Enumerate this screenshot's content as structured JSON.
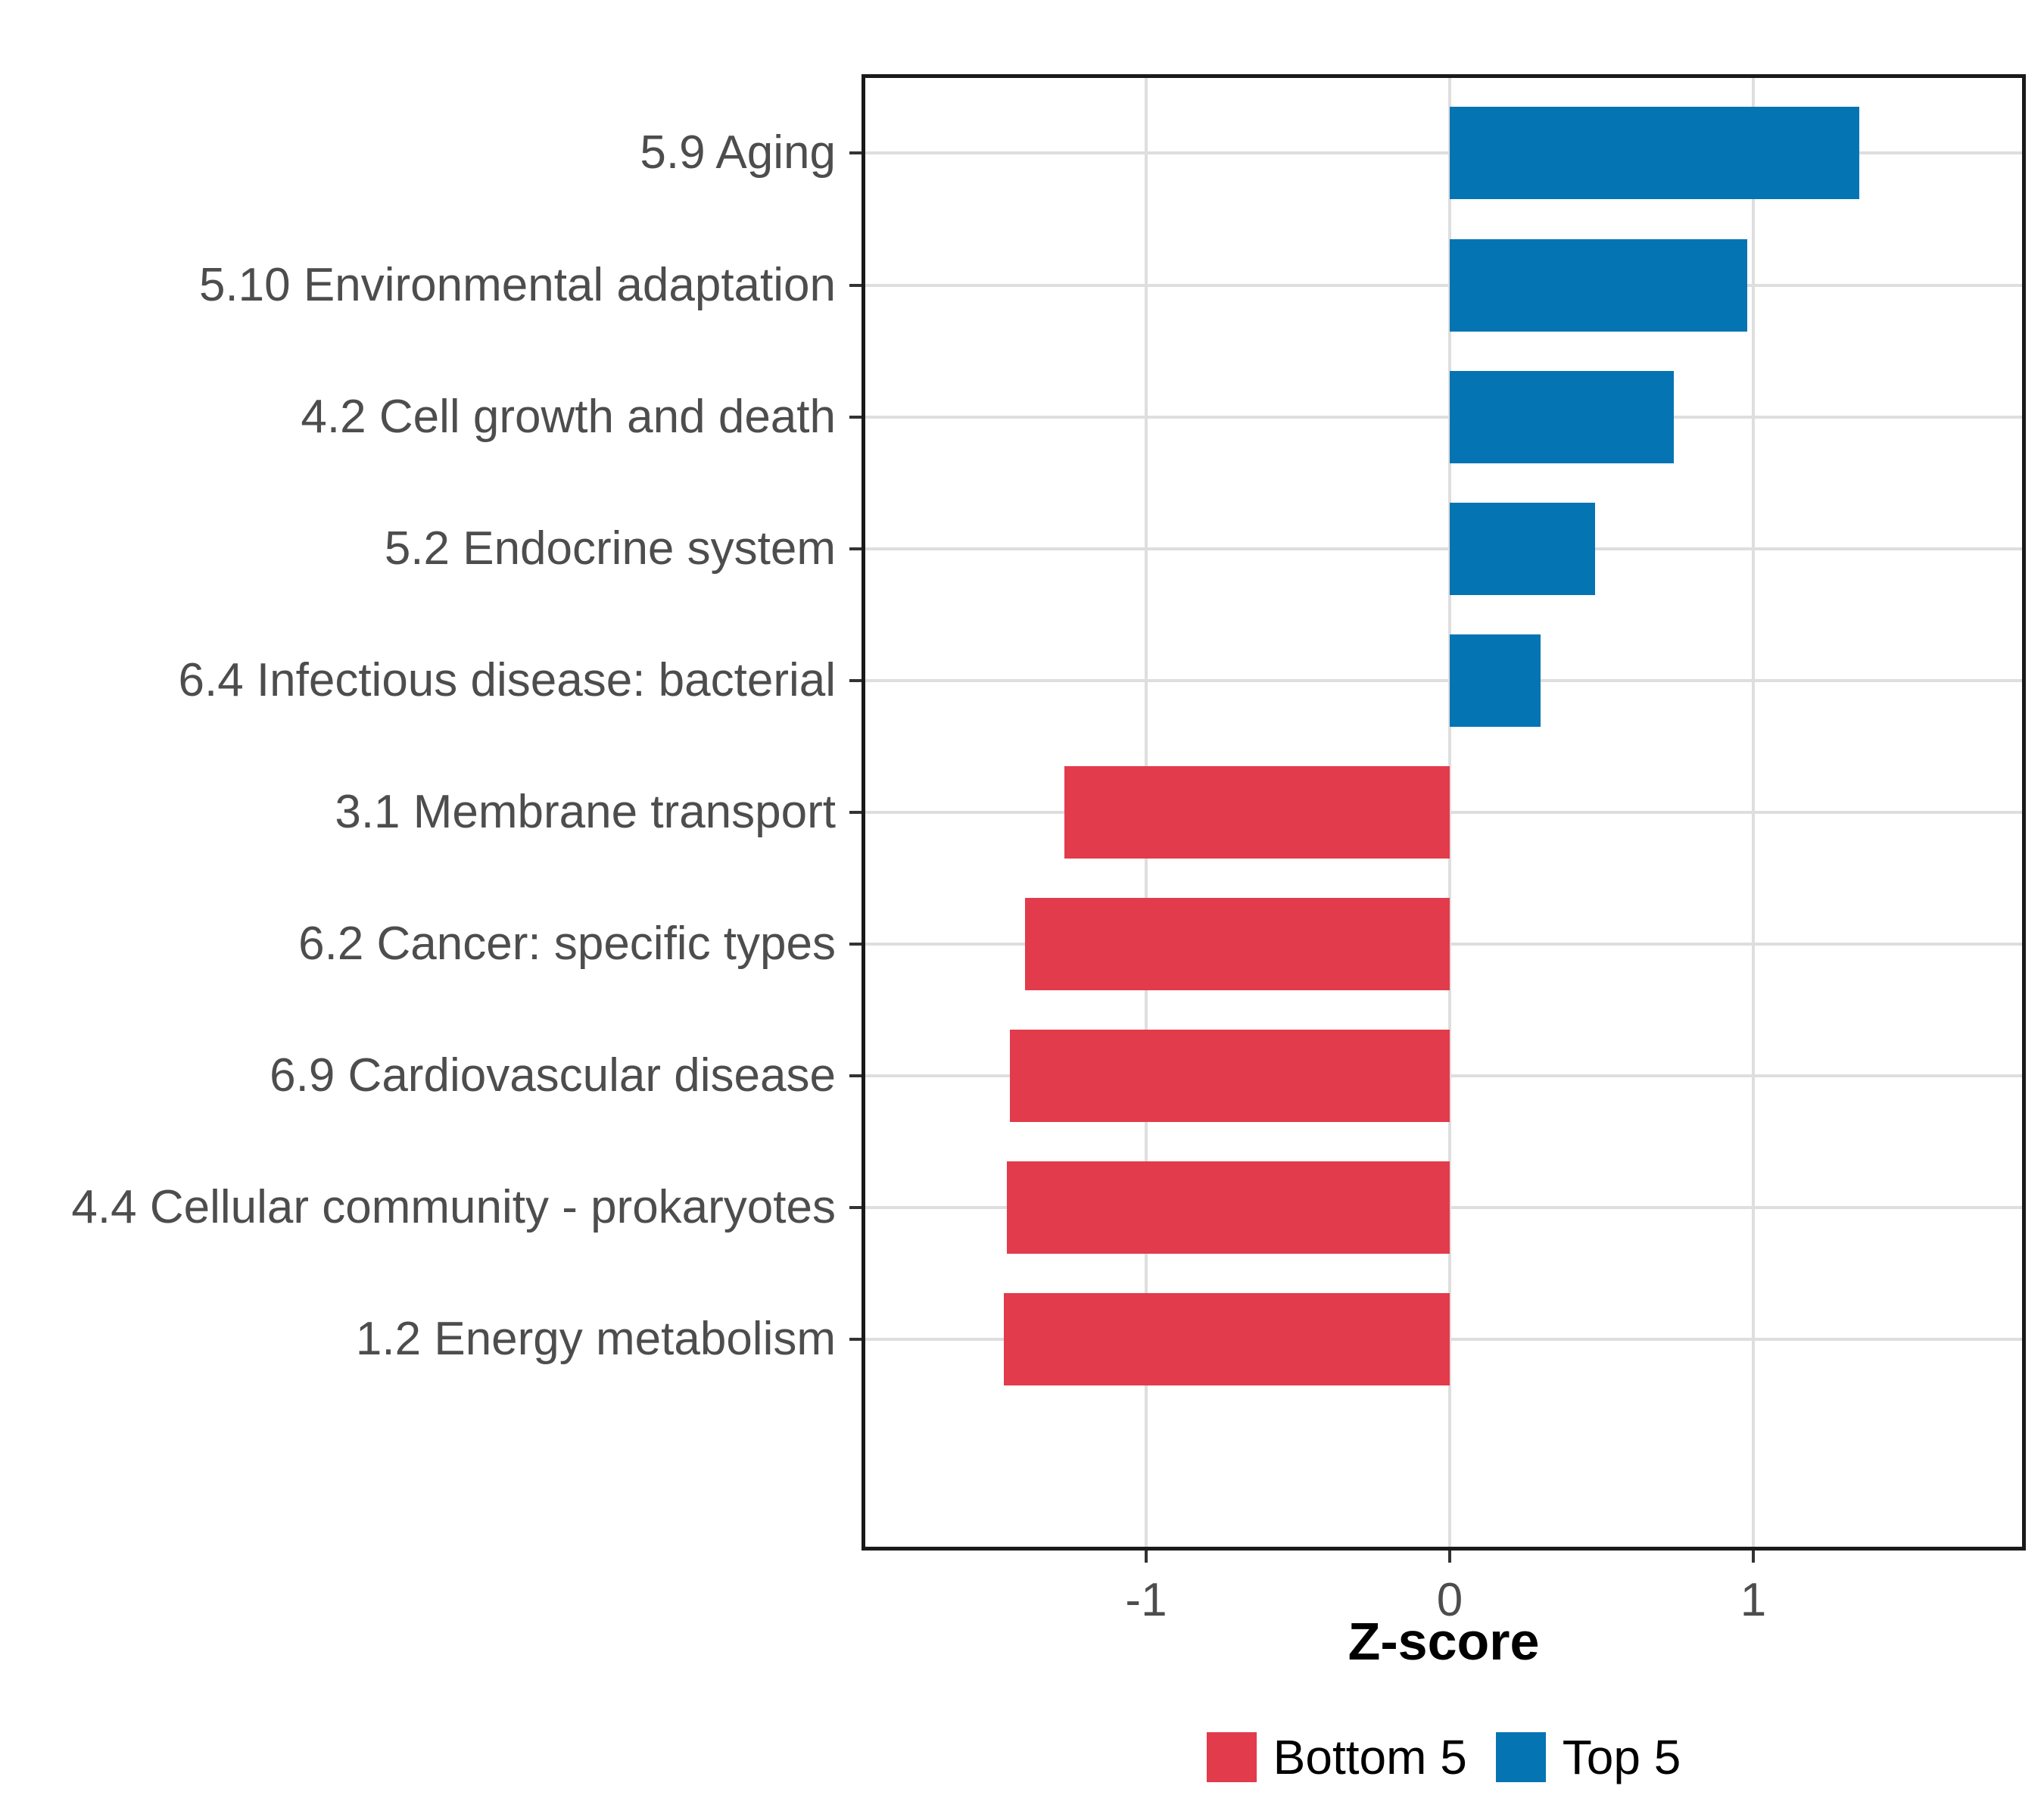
{
  "chart_data": {
    "type": "bar",
    "orientation": "horizontal",
    "title": "",
    "xlabel": "Z-score",
    "ylabel": "",
    "grid": true,
    "legend_position": "bottom",
    "xlim": [
      -1.94,
      1.9
    ],
    "x_ticks": [
      -1,
      0,
      1
    ],
    "x_tick_labels": [
      "-1",
      "0",
      "1"
    ],
    "categories": [
      "5.9 Aging",
      "5.10 Environmental adaptation",
      "4.2 Cell growth and death",
      "5.2 Endocrine system",
      "6.4 Infectious disease: bacterial",
      "3.1 Membrane transport",
      "6.2 Cancer: specific types",
      "6.9 Cardiovascular disease",
      "4.4 Cellular community - prokaryotes",
      "1.2 Energy metabolism"
    ],
    "bars": [
      {
        "category": "5.9 Aging",
        "value": 1.35,
        "group": "Top 5"
      },
      {
        "category": "5.10 Environmental adaptation",
        "value": 0.98,
        "group": "Top 5"
      },
      {
        "category": "4.2 Cell growth and death",
        "value": 0.74,
        "group": "Top 5"
      },
      {
        "category": "5.2 Endocrine system",
        "value": 0.48,
        "group": "Top 5"
      },
      {
        "category": "6.4 Infectious disease: bacterial",
        "value": 0.3,
        "group": "Top 5"
      },
      {
        "category": "3.1 Membrane transport",
        "value": -1.27,
        "group": "Bottom 5"
      },
      {
        "category": "6.2 Cancer: specific types",
        "value": -1.4,
        "group": "Bottom 5"
      },
      {
        "category": "6.9 Cardiovascular disease",
        "value": -1.45,
        "group": "Bottom 5"
      },
      {
        "category": "4.4 Cellular community - prokaryotes",
        "value": -1.46,
        "group": "Bottom 5"
      },
      {
        "category": "1.2 Energy metabolism",
        "value": -1.47,
        "group": "Bottom 5"
      }
    ],
    "legend": [
      {
        "label": "Bottom 5",
        "group": "Bottom 5"
      },
      {
        "label": "Top 5",
        "group": "Top 5"
      }
    ],
    "colors": {
      "Bottom 5": "#E23B4C",
      "Top 5": "#0574B2",
      "grid": "#DEDEDE",
      "panel_border": "#1A1A1A",
      "tick": "#333333",
      "axis_text": "#4D4D4D",
      "title_text": "#000000"
    }
  }
}
